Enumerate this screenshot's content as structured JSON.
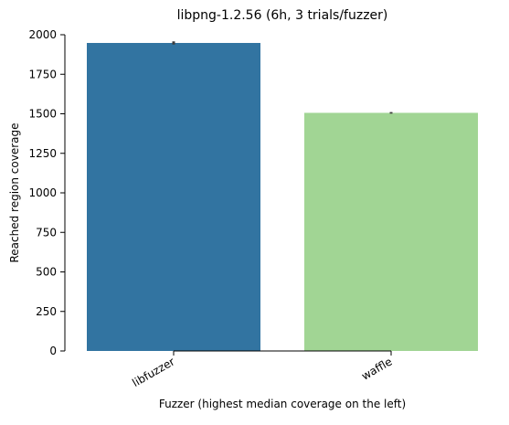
{
  "chart_data": {
    "type": "bar",
    "title": "libpng-1.2.56 (6h, 3 trials/fuzzer)",
    "xlabel": "Fuzzer (highest median coverage on the left)",
    "ylabel": "Reached region coverage",
    "categories": [
      "libfuzzer",
      "waffle"
    ],
    "values": [
      1948,
      1506
    ],
    "error_low": [
      1938,
      1501
    ],
    "error_high": [
      1958,
      1511
    ],
    "colors": [
      "#3274a1",
      "#a1d594"
    ],
    "ylim": [
      0,
      2000
    ],
    "yticks": [
      "0",
      "250",
      "500",
      "750",
      "1000",
      "1250",
      "1500",
      "1750",
      "2000"
    ],
    "grid": false
  }
}
